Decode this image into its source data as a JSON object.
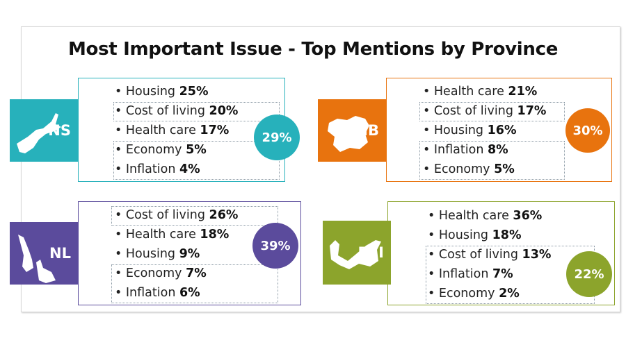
{
  "title": "Most Important Issue - Top Mentions by Province",
  "provinces": [
    {
      "abbr": "NS",
      "color": "#27b1bb",
      "map_icon": "nova-scotia-map-icon",
      "overall": "29%",
      "issues": [
        {
          "label": "Housing",
          "value": "25%"
        },
        {
          "label": "Cost of living",
          "value": "20%"
        },
        {
          "label": "Health care",
          "value": "17%"
        },
        {
          "label": "Economy",
          "value": "5%"
        },
        {
          "label": "Inflation",
          "value": "4%"
        }
      ]
    },
    {
      "abbr": "NB",
      "color": "#e8730e",
      "map_icon": "new-brunswick-map-icon",
      "overall": "30%",
      "issues": [
        {
          "label": "Health care",
          "value": "21%"
        },
        {
          "label": "Cost of living",
          "value": "17%"
        },
        {
          "label": "Housing",
          "value": "16%"
        },
        {
          "label": "Inflation",
          "value": "8%"
        },
        {
          "label": "Economy",
          "value": "5%"
        }
      ]
    },
    {
      "abbr": "NL",
      "color": "#5b4b9c",
      "map_icon": "newfoundland-labrador-map-icon",
      "overall": "39%",
      "issues": [
        {
          "label": "Cost of living",
          "value": "26%"
        },
        {
          "label": "Health care",
          "value": "18%"
        },
        {
          "label": "Housing",
          "value": "9%"
        },
        {
          "label": "Economy",
          "value": "7%"
        },
        {
          "label": "Inflation",
          "value": "6%"
        }
      ]
    },
    {
      "abbr": "PEI",
      "color": "#8ca42c",
      "map_icon": "pei-map-icon",
      "overall": "22%",
      "issues": [
        {
          "label": "Health care",
          "value": "36%"
        },
        {
          "label": "Housing",
          "value": "18%"
        },
        {
          "label": "Cost of living",
          "value": "13%"
        },
        {
          "label": "Inflation",
          "value": "7%"
        },
        {
          "label": "Economy",
          "value": "2%"
        }
      ]
    }
  ]
}
